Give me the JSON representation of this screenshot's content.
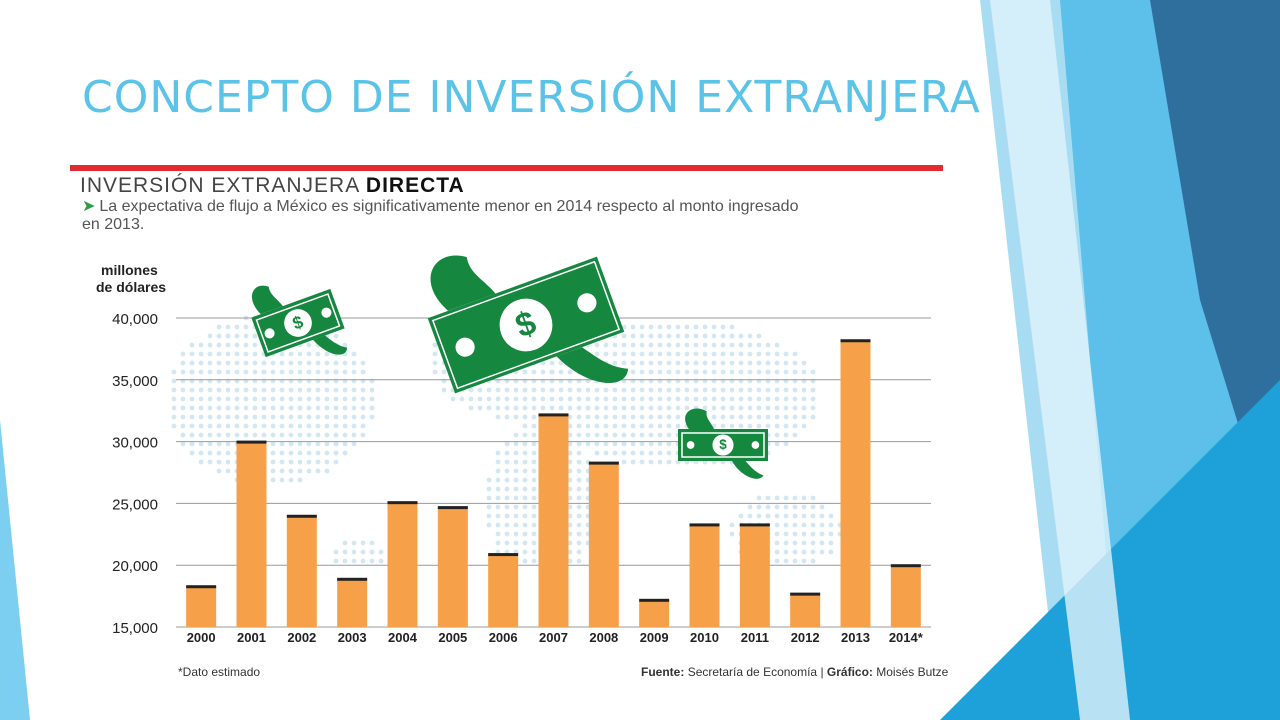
{
  "slide": {
    "title": "CONCEPTO DE INVERSIÓN EXTRANJERA"
  },
  "infographic": {
    "heading_light": "INVERSIÓN EXTRANJERA",
    "heading_bold": "DIRECTA",
    "subtitle": "La expectativa de flujo a México es significativamente menor en 2014 respecto al monto ingresado en 2013.",
    "note": "*Dato estimado",
    "source_label": "Fuente:",
    "source_text": "Secretaría de Economía",
    "credit_label": "Gráfico:",
    "credit_text": "Moisés Butze",
    "bill_symbol": "$"
  },
  "colors": {
    "title": "#5bc3e8",
    "bar": "#f6a14a",
    "bar_cap": "#222222",
    "red_rule": "#e32b2f",
    "bills": "#16873f",
    "map_dots": "#d3e7f2"
  },
  "icons": [
    "winged-dollar-bill-icon",
    "world-map-dots",
    "green-arrow-icon"
  ],
  "chart_data": {
    "type": "bar",
    "title": "INVERSIÓN EXTRANJERA DIRECTA",
    "ylabel": "millones de dólares",
    "xlabel": "",
    "categories": [
      "2000",
      "2001",
      "2002",
      "2003",
      "2004",
      "2005",
      "2006",
      "2007",
      "2008",
      "2009",
      "2010",
      "2011",
      "2012",
      "2013",
      "2014*"
    ],
    "values": [
      18300,
      30000,
      24000,
      18900,
      25100,
      24700,
      20900,
      32200,
      28300,
      17200,
      23300,
      23300,
      17700,
      38200,
      20000
    ],
    "ylim": [
      15000,
      40000
    ],
    "yticks": [
      15000,
      20000,
      25000,
      30000,
      35000,
      40000
    ],
    "ytick_labels": [
      "15,000",
      "20,000",
      "25,000",
      "30,000",
      "35,000",
      "40,000"
    ],
    "grid": true,
    "legend": "none"
  }
}
